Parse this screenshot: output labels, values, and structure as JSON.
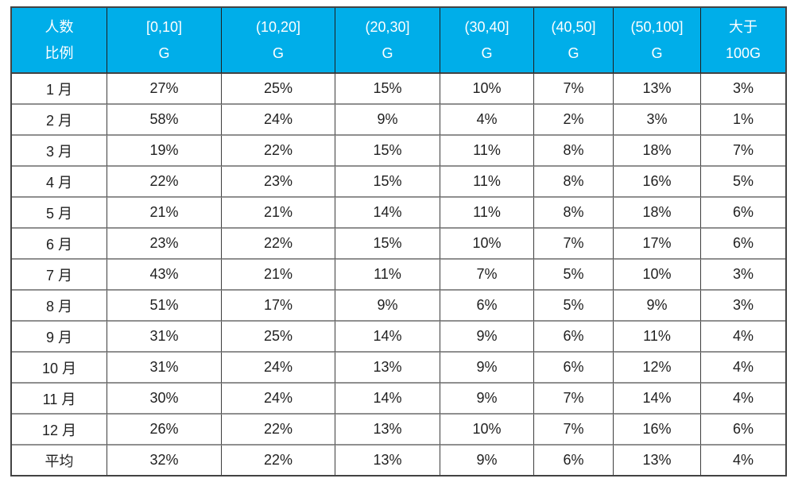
{
  "table": {
    "header": [
      {
        "line1": "人数",
        "line2": "比例"
      },
      {
        "line1": "[0,10]",
        "line2": "G"
      },
      {
        "line1": "(10,20]",
        "line2": "G"
      },
      {
        "line1": "(20,30]",
        "line2": "G"
      },
      {
        "line1": "(30,40]",
        "line2": "G"
      },
      {
        "line1": "(40,50]",
        "line2": "G"
      },
      {
        "line1": "(50,100]",
        "line2": "G"
      },
      {
        "line1": "大于",
        "line2": "100G"
      }
    ],
    "rows": [
      {
        "label": "1 月",
        "values": [
          "27%",
          "25%",
          "15%",
          "10%",
          "7%",
          "13%",
          "3%"
        ]
      },
      {
        "label": "2 月",
        "values": [
          "58%",
          "24%",
          "9%",
          "4%",
          "2%",
          "3%",
          "1%"
        ]
      },
      {
        "label": "3 月",
        "values": [
          "19%",
          "22%",
          "15%",
          "11%",
          "8%",
          "18%",
          "7%"
        ]
      },
      {
        "label": "4 月",
        "values": [
          "22%",
          "23%",
          "15%",
          "11%",
          "8%",
          "16%",
          "5%"
        ]
      },
      {
        "label": "5 月",
        "values": [
          "21%",
          "21%",
          "14%",
          "11%",
          "8%",
          "18%",
          "6%"
        ]
      },
      {
        "label": "6 月",
        "values": [
          "23%",
          "22%",
          "15%",
          "10%",
          "7%",
          "17%",
          "6%"
        ]
      },
      {
        "label": "7 月",
        "values": [
          "43%",
          "21%",
          "11%",
          "7%",
          "5%",
          "10%",
          "3%"
        ]
      },
      {
        "label": "8 月",
        "values": [
          "51%",
          "17%",
          "9%",
          "6%",
          "5%",
          "9%",
          "3%"
        ]
      },
      {
        "label": "9 月",
        "values": [
          "31%",
          "25%",
          "14%",
          "9%",
          "6%",
          "11%",
          "4%"
        ]
      },
      {
        "label": "10 月",
        "values": [
          "31%",
          "24%",
          "13%",
          "9%",
          "6%",
          "12%",
          "4%"
        ]
      },
      {
        "label": "11 月",
        "values": [
          "30%",
          "24%",
          "14%",
          "9%",
          "7%",
          "14%",
          "4%"
        ]
      },
      {
        "label": "12 月",
        "values": [
          "26%",
          "22%",
          "13%",
          "10%",
          "7%",
          "16%",
          "6%"
        ]
      },
      {
        "label": "平均",
        "values": [
          "32%",
          "22%",
          "13%",
          "9%",
          "6%",
          "13%",
          "4%"
        ]
      }
    ]
  },
  "colors": {
    "header_bg": "#00AEE9",
    "header_text": "#FFFFFF",
    "body_text": "#1F1F1F",
    "border_vertical": "#3D3D3D",
    "border_horizontal": "#8F8F8F",
    "outer_border": "#434343"
  },
  "chart_data": {
    "type": "table",
    "title": "",
    "corner_label": "人数比例",
    "unit": "%",
    "categories": [
      "1月",
      "2月",
      "3月",
      "4月",
      "5月",
      "6月",
      "7月",
      "8月",
      "9月",
      "10月",
      "11月",
      "12月",
      "平均"
    ],
    "series": [
      {
        "name": "[0,10]G",
        "values": [
          27,
          58,
          19,
          22,
          21,
          23,
          43,
          51,
          31,
          31,
          30,
          26,
          32
        ]
      },
      {
        "name": "(10,20]G",
        "values": [
          25,
          24,
          22,
          23,
          21,
          22,
          21,
          17,
          25,
          24,
          24,
          22,
          22
        ]
      },
      {
        "name": "(20,30]G",
        "values": [
          15,
          9,
          15,
          15,
          14,
          15,
          11,
          9,
          14,
          13,
          14,
          13,
          13
        ]
      },
      {
        "name": "(30,40]G",
        "values": [
          10,
          4,
          11,
          11,
          11,
          10,
          7,
          6,
          9,
          9,
          9,
          10,
          9
        ]
      },
      {
        "name": "(40,50]G",
        "values": [
          7,
          2,
          8,
          8,
          8,
          7,
          5,
          5,
          6,
          6,
          7,
          7,
          6
        ]
      },
      {
        "name": "(50,100]G",
        "values": [
          13,
          3,
          18,
          16,
          18,
          17,
          10,
          9,
          11,
          12,
          14,
          16,
          13
        ]
      },
      {
        "name": "大于100G",
        "values": [
          3,
          1,
          7,
          5,
          6,
          6,
          3,
          3,
          4,
          4,
          4,
          6,
          4
        ]
      }
    ],
    "layout": {
      "grid": true,
      "header_position": "top",
      "row_label_column": true
    }
  }
}
